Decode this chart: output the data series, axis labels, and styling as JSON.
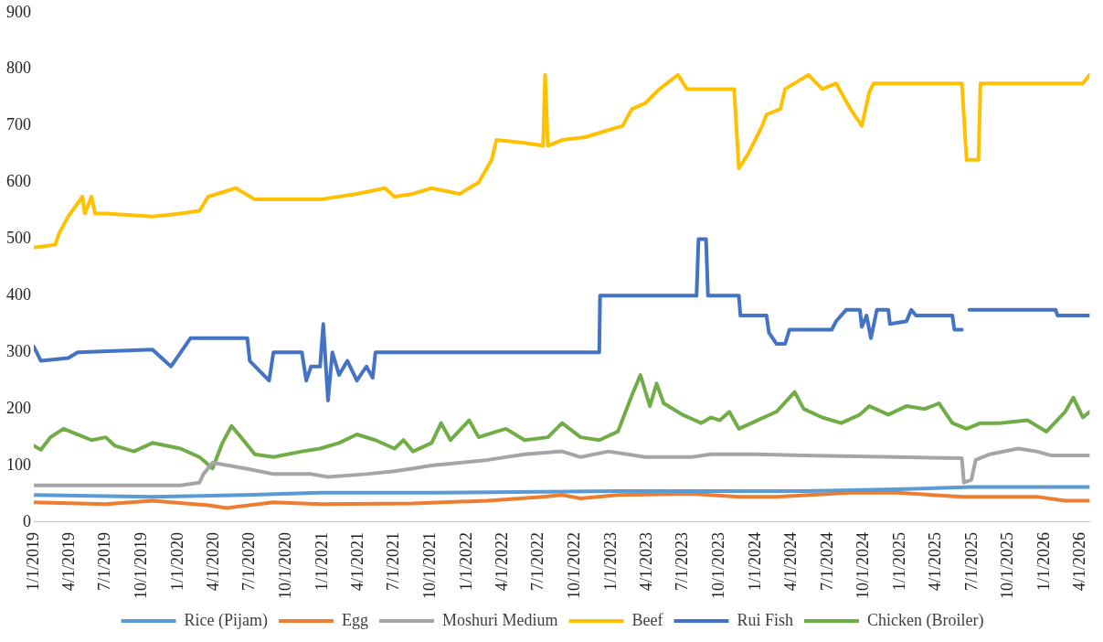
{
  "chart_data": {
    "type": "line",
    "xlim": [
      "2019-01-01",
      "2026-04-24"
    ],
    "ylim": [
      0,
      900
    ],
    "yticks": [
      0,
      100,
      200,
      300,
      400,
      500,
      600,
      700,
      800,
      900
    ],
    "xticks": [
      {
        "value": "2019-01-01",
        "label": "1/1/2019"
      },
      {
        "value": "2019-04-01",
        "label": "4/1/2019"
      },
      {
        "value": "2019-07-01",
        "label": "7/1/2019"
      },
      {
        "value": "2019-10-01",
        "label": "10/1/2019"
      },
      {
        "value": "2020-01-01",
        "label": "1/1/2020"
      },
      {
        "value": "2020-04-01",
        "label": "4/1/2020"
      },
      {
        "value": "2020-07-01",
        "label": "7/1/2020"
      },
      {
        "value": "2020-10-01",
        "label": "10/1/2020"
      },
      {
        "value": "2021-01-01",
        "label": "1/1/2021"
      },
      {
        "value": "2021-04-01",
        "label": "4/1/2021"
      },
      {
        "value": "2021-07-01",
        "label": "7/1/2021"
      },
      {
        "value": "2021-10-01",
        "label": "10/1/2021"
      },
      {
        "value": "2022-01-01",
        "label": "1/1/2022"
      },
      {
        "value": "2022-04-01",
        "label": "4/1/2022"
      },
      {
        "value": "2022-07-01",
        "label": "7/1/2022"
      },
      {
        "value": "2022-10-01",
        "label": "10/1/2022"
      },
      {
        "value": "2023-01-01",
        "label": "1/1/2023"
      },
      {
        "value": "2023-04-01",
        "label": "4/1/2023"
      },
      {
        "value": "2023-07-01",
        "label": "7/1/2023"
      },
      {
        "value": "2023-10-01",
        "label": "10/1/2023"
      },
      {
        "value": "2024-01-01",
        "label": "1/1/2024"
      },
      {
        "value": "2024-04-01",
        "label": "4/1/2024"
      },
      {
        "value": "2024-07-01",
        "label": "7/1/2024"
      },
      {
        "value": "2024-10-01",
        "label": "10/1/2024"
      },
      {
        "value": "2025-01-01",
        "label": "1/1/2025"
      },
      {
        "value": "2025-04-01",
        "label": "4/1/2025"
      },
      {
        "value": "2025-07-01",
        "label": "7/1/2025"
      },
      {
        "value": "2025-10-01",
        "label": "10/1/2025"
      },
      {
        "value": "2026-01-01",
        "label": "1/1/2026"
      },
      {
        "value": "2026-04-01",
        "label": "4/1/2026"
      }
    ],
    "grid": false,
    "legend": "bottom",
    "marker": "none",
    "line_style": "solid",
    "series": [
      {
        "name": "Rice (Pijam)",
        "color": "#5b9bd5",
        "x": [
          "2019-01-01",
          "2019-10-28",
          "2020-06-19",
          "2020-12-25",
          "2021-10-03",
          "2023-01-17",
          "2024-05-01",
          "2024-12-23",
          "2025-06-29",
          "2026-04-24"
        ],
        "values": [
          48,
          45,
          48,
          52,
          52,
          55,
          55,
          58,
          62,
          62
        ]
      },
      {
        "name": "Egg",
        "color": "#ed7d31",
        "x": [
          "2019-01-01",
          "2019-07-02",
          "2019-10-28",
          "2020-03-17",
          "2020-05-03",
          "2020-08-29",
          "2020-12-25",
          "2021-08-17",
          "2022-02-22",
          "2022-07-12",
          "2022-08-29",
          "2022-10-15",
          "2023-01-17",
          "2023-07-23",
          "2023-11-19",
          "2024-02-22",
          "2024-08-27",
          "2024-12-23",
          "2025-06-05",
          "2025-12-11",
          "2026-02-21",
          "2026-04-24"
        ],
        "values": [
          35,
          32,
          38,
          30,
          25,
          35,
          32,
          33,
          38,
          45,
          48,
          42,
          48,
          50,
          45,
          45,
          52,
          52,
          45,
          45,
          38,
          38
        ]
      },
      {
        "name": "Moshuri Medium",
        "color": "#a5a5a5",
        "x": [
          "2019-01-01",
          "2020-01-07",
          "2020-02-24",
          "2020-03-05",
          "2020-03-28",
          "2020-06-19",
          "2020-08-29",
          "2020-12-02",
          "2021-01-14",
          "2021-04-21",
          "2021-07-01",
          "2021-08-17",
          "2021-10-03",
          "2021-12-13",
          "2022-02-22",
          "2022-05-26",
          "2022-08-29",
          "2022-10-15",
          "2022-12-24",
          "2023-02-10",
          "2023-03-27",
          "2023-07-23",
          "2023-09-09",
          "2024-01-05",
          "2024-05-01",
          "2024-12-23",
          "2025-06-05",
          "2025-06-10",
          "2025-06-29",
          "2025-07-10",
          "2025-08-15",
          "2025-10-25",
          "2025-12-11",
          "2026-01-16",
          "2026-04-24"
        ],
        "values": [
          65,
          65,
          70,
          85,
          105,
          95,
          85,
          85,
          80,
          85,
          90,
          95,
          100,
          105,
          110,
          120,
          125,
          115,
          125,
          120,
          115,
          115,
          120,
          120,
          118,
          115,
          113,
          70,
          75,
          110,
          120,
          130,
          125,
          118,
          118
        ]
      },
      {
        "name": "Beef",
        "color": "#ffc000",
        "x": [
          "2019-01-01",
          "2019-02-24",
          "2019-03-06",
          "2019-03-29",
          "2019-05-04",
          "2019-05-10",
          "2019-05-27",
          "2019-06-05",
          "2019-07-02",
          "2019-10-28",
          "2020-01-07",
          "2020-02-24",
          "2020-03-17",
          "2020-05-26",
          "2020-07-13",
          "2020-12-25",
          "2021-03-28",
          "2021-06-07",
          "2021-07-01",
          "2021-08-17",
          "2021-10-03",
          "2021-12-13",
          "2022-01-30",
          "2022-03-04",
          "2022-03-16",
          "2022-05-26",
          "2022-07-12",
          "2022-07-17",
          "2022-07-24",
          "2022-08-29",
          "2022-10-26",
          "2023-01-29",
          "2023-02-22",
          "2023-03-27",
          "2023-05-02",
          "2023-06-18",
          "2023-07-11",
          "2023-11-07",
          "2023-11-19",
          "2023-12-12",
          "2024-01-17",
          "2024-01-28",
          "2024-03-03",
          "2024-03-15",
          "2024-05-13",
          "2024-06-17",
          "2024-07-22",
          "2024-08-27",
          "2024-09-25",
          "2024-10-14",
          "2024-10-25",
          "2025-06-05",
          "2025-06-17",
          "2025-07-17",
          "2025-07-22",
          "2026-04-07",
          "2026-04-24"
        ],
        "values": [
          485,
          490,
          510,
          540,
          575,
          545,
          575,
          545,
          545,
          540,
          545,
          550,
          575,
          590,
          570,
          570,
          580,
          590,
          575,
          580,
          590,
          580,
          600,
          640,
          675,
          670,
          665,
          790,
          665,
          675,
          680,
          700,
          730,
          740,
          765,
          790,
          765,
          765,
          625,
          650,
          700,
          720,
          730,
          765,
          790,
          765,
          775,
          730,
          700,
          760,
          775,
          775,
          640,
          640,
          775,
          775,
          790
        ]
      },
      {
        "name": "Rui Fish",
        "color": "#4472c4",
        "x": [
          "2019-01-01",
          "2019-01-19",
          "2019-03-29",
          "2019-04-22",
          "2019-10-28",
          "2019-12-14",
          "2020-02-01",
          "2020-06-24",
          "2020-06-30",
          "2020-08-18",
          "2020-08-29",
          "2020-11-09",
          "2020-11-20",
          "2020-12-02",
          "2020-12-25",
          "2021-01-02",
          "2021-01-14",
          "2021-01-25",
          "2021-02-11",
          "2021-03-04",
          "2021-03-28",
          "2021-04-21",
          "2021-05-07",
          "2021-05-14",
          "2022-12-01",
          "2022-12-03",
          "2023-08-04",
          "2023-08-09",
          "2023-08-28",
          "2023-09-02",
          "2023-11-19",
          "2023-11-23",
          "2024-01-28",
          "2024-02-03",
          "2024-02-22",
          "2024-03-15",
          "2024-03-26",
          "2024-07-11",
          "2024-07-22",
          "2024-08-16",
          "2024-09-20",
          "2024-09-25",
          "2024-10-07",
          "2024-10-18",
          "2024-11-02",
          "2024-12-01",
          "2024-12-05",
          "2025-01-16",
          "2025-01-28",
          "2025-02-09",
          "2025-05-12",
          "2025-05-17",
          "2025-06-05",
          "2025-06-10",
          "2025-06-24",
          "2026-01-28",
          "2026-02-02",
          "2026-04-24"
        ],
        "values": [
          310,
          285,
          290,
          300,
          305,
          275,
          325,
          325,
          285,
          250,
          300,
          300,
          250,
          275,
          275,
          350,
          215,
          300,
          260,
          285,
          250,
          275,
          255,
          300,
          300,
          400,
          400,
          500,
          500,
          400,
          400,
          365,
          365,
          335,
          315,
          315,
          340,
          340,
          355,
          375,
          375,
          345,
          365,
          325,
          375,
          375,
          350,
          355,
          375,
          365,
          365,
          340,
          340,
          null,
          375,
          375,
          365,
          365
        ]
      },
      {
        "name": "Chicken (Broiler)",
        "color": "#70ad47",
        "x": [
          "2019-01-01",
          "2019-01-19",
          "2019-02-12",
          "2019-03-17",
          "2019-04-22",
          "2019-05-27",
          "2019-07-02",
          "2019-07-25",
          "2019-09-11",
          "2019-10-28",
          "2020-01-07",
          "2020-02-24",
          "2020-03-28",
          "2020-04-22",
          "2020-05-15",
          "2020-06-08",
          "2020-07-13",
          "2020-08-29",
          "2020-11-09",
          "2020-12-25",
          "2021-02-11",
          "2021-03-28",
          "2021-05-14",
          "2021-07-01",
          "2021-07-24",
          "2021-08-17",
          "2021-10-03",
          "2021-10-27",
          "2021-11-20",
          "2022-01-06",
          "2022-01-30",
          "2022-03-16",
          "2022-04-09",
          "2022-05-26",
          "2022-07-24",
          "2022-08-29",
          "2022-10-15",
          "2022-12-01",
          "2023-01-17",
          "2023-02-22",
          "2023-03-15",
          "2023-04-08",
          "2023-04-25",
          "2023-05-13",
          "2023-06-29",
          "2023-08-16",
          "2023-09-09",
          "2023-10-02",
          "2023-10-26",
          "2023-11-19",
          "2024-01-05",
          "2024-02-22",
          "2024-04-08",
          "2024-05-01",
          "2024-06-17",
          "2024-08-04",
          "2024-09-20",
          "2024-10-14",
          "2024-12-01",
          "2025-01-16",
          "2025-03-03",
          "2025-04-08",
          "2025-05-12",
          "2025-06-17",
          "2025-07-22",
          "2025-09-08",
          "2025-11-18",
          "2026-01-05",
          "2026-02-21",
          "2026-03-14",
          "2026-04-07",
          "2026-04-24"
        ],
        "values": [
          135,
          128,
          150,
          165,
          155,
          145,
          150,
          135,
          125,
          140,
          130,
          115,
          95,
          140,
          170,
          150,
          120,
          115,
          125,
          130,
          140,
          155,
          145,
          130,
          145,
          125,
          140,
          175,
          145,
          180,
          150,
          160,
          165,
          145,
          150,
          175,
          150,
          145,
          160,
          225,
          260,
          205,
          245,
          210,
          190,
          175,
          185,
          180,
          195,
          165,
          180,
          195,
          230,
          200,
          185,
          175,
          190,
          205,
          190,
          205,
          200,
          210,
          175,
          165,
          175,
          175,
          180,
          160,
          195,
          220,
          185,
          195
        ]
      }
    ]
  }
}
